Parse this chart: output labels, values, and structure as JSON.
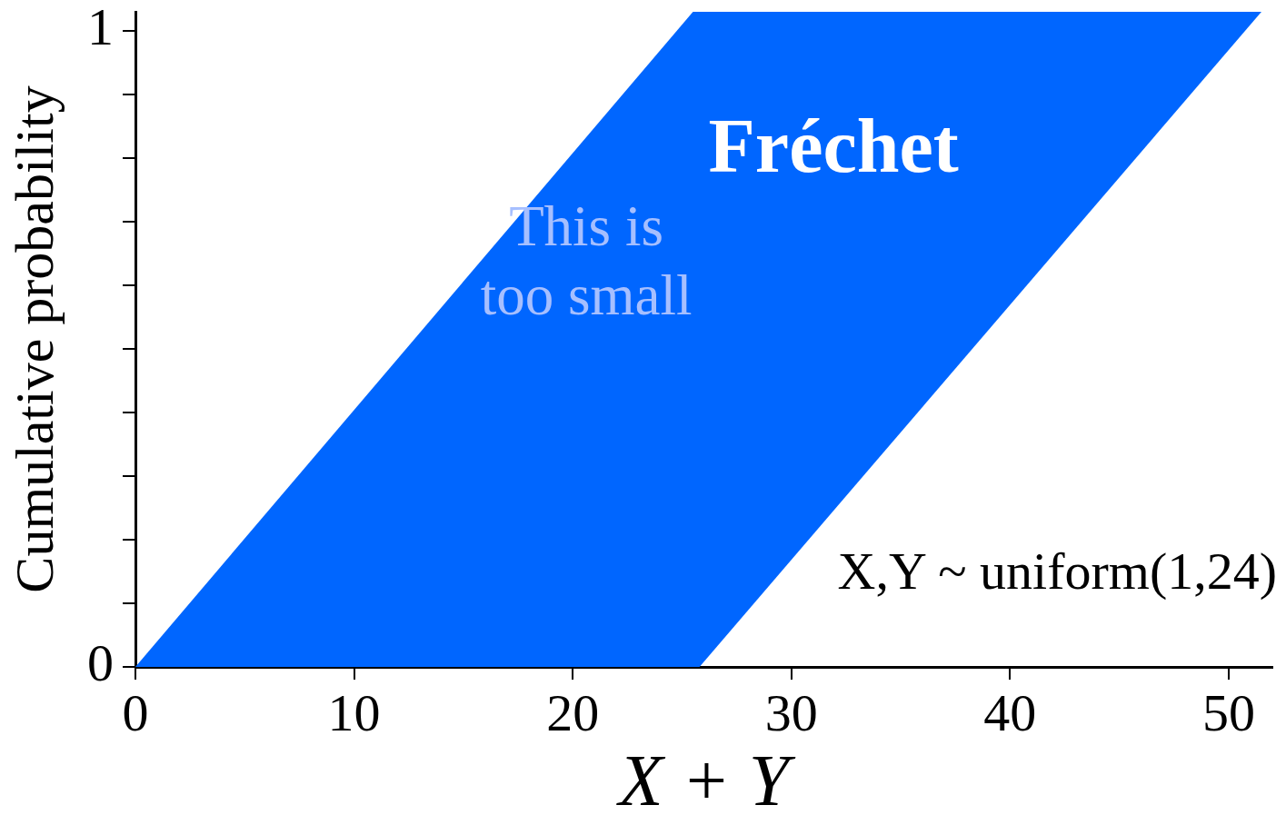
{
  "chart_data": {
    "type": "area",
    "xlabel": "X + Y",
    "ylabel": "Cumulative probability",
    "annotations": [
      "Fréchet",
      "This is too small",
      "X,Y ~ uniform(1,24)"
    ],
    "series": [
      {
        "color": "#0066ff",
        "x": [
          0,
          25.5,
          25.8,
          51.5
        ],
        "values": [
          null,
          null,
          null,
          null
        ],
        "lower": [
          0,
          0,
          0,
          1.03
        ],
        "upper": [
          0,
          1.03,
          1.03,
          1.03
        ]
      }
    ],
    "xlim": [
      0,
      52
    ],
    "xticks": [
      0,
      10,
      20,
      30,
      40,
      50
    ],
    "ylim": [
      0,
      1.03
    ],
    "yticks": [
      0,
      {
        "value": 0.1,
        "label": null
      },
      {
        "value": 0.2,
        "label": null
      },
      {
        "value": 0.3,
        "label": null
      },
      {
        "value": 0.4,
        "label": null
      },
      {
        "value": 0.5,
        "label": null
      },
      {
        "value": 0.6,
        "label": null
      },
      {
        "value": 0.7,
        "label": null
      },
      {
        "value": 0.8,
        "label": null
      },
      {
        "value": 0.9,
        "label": null
      },
      1
    ]
  }
}
